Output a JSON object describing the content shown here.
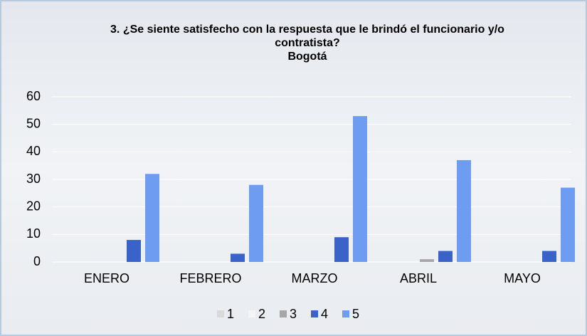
{
  "chart_data": {
    "type": "bar",
    "title": "3. ¿Se siente satisfecho con la respuesta que le brindó el funcionario y/o contratista?",
    "subtitle": "Bogotá",
    "categories": [
      "ENERO",
      "FEBRERO",
      "MARZO",
      "ABRIL",
      "MAYO"
    ],
    "series": [
      {
        "name": "1",
        "color": "#d9d9d9",
        "values": [
          0,
          0,
          0,
          0,
          0
        ]
      },
      {
        "name": "2",
        "color": "#f5f5f5",
        "values": [
          0,
          0,
          0,
          0,
          0
        ]
      },
      {
        "name": "3",
        "color": "#a6a6a6",
        "values": [
          0,
          0,
          0,
          1,
          0
        ]
      },
      {
        "name": "4",
        "color": "#3a63c9",
        "values": [
          8,
          3,
          9,
          4,
          4
        ]
      },
      {
        "name": "5",
        "color": "#6d9cf0",
        "values": [
          32,
          28,
          53,
          37,
          27
        ]
      }
    ],
    "ylim": [
      0,
      60
    ],
    "yticks": [
      0,
      10,
      20,
      30,
      40,
      50,
      60
    ],
    "grid": true,
    "legend": "bottom"
  }
}
